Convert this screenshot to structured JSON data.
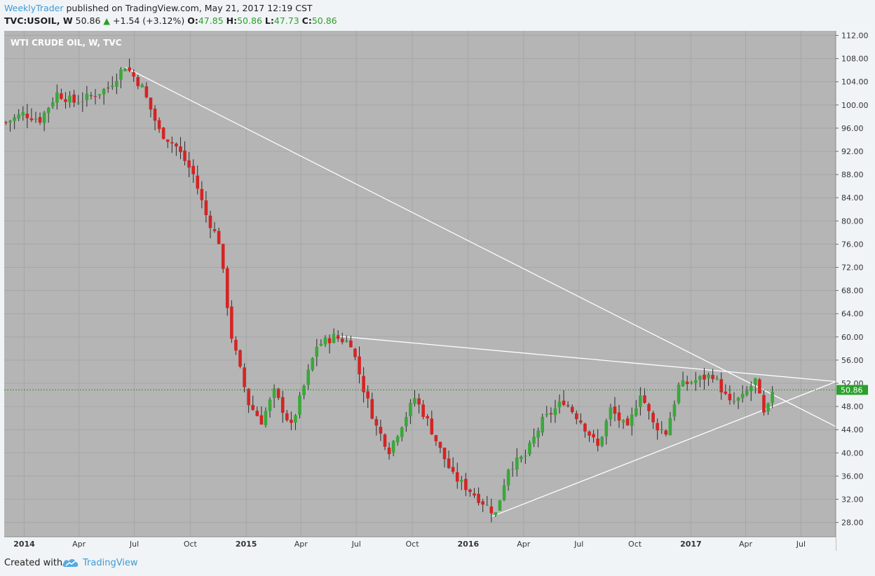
{
  "header": {
    "author": "WeeklyTrader",
    "published": "published on TradingView.com, May 21, 2017 12:19 CST",
    "symbol": "TVC:USOIL, W",
    "last": "50.86",
    "change": "+1.54 (+3.12%)",
    "o_label": "O:",
    "o_value": "47.85",
    "h_label": "H:",
    "h_value": "50.86",
    "l_label": "L:",
    "l_value": "47.73",
    "c_label": "C:",
    "c_value": "50.86"
  },
  "footer": {
    "created_with": "Created with",
    "brand": "TradingView",
    "logo_icon": "tradingview-cloud-icon"
  },
  "colors": {
    "up": "#3aa83a",
    "down": "#d42424",
    "background": "#b5b5b5",
    "price_label": "#2ba02b",
    "trendline": "#ffffff"
  },
  "chart_data": {
    "type": "candlestick",
    "title": "WTI CRUDE OIL, W, TVC",
    "ylim": [
      25,
      113
    ],
    "y_ticks": [
      "112.00",
      "108.00",
      "104.00",
      "100.00",
      "96.00",
      "92.00",
      "88.00",
      "84.00",
      "80.00",
      "76.00",
      "72.00",
      "68.00",
      "64.00",
      "60.00",
      "56.00",
      "52.00",
      "48.00",
      "44.00",
      "40.00",
      "36.00",
      "32.00",
      "28.00"
    ],
    "x_ticks": [
      {
        "label": "2014",
        "date": "2014-01-01"
      },
      {
        "label": "Apr",
        "date": "2014-04-01"
      },
      {
        "label": "Jul",
        "date": "2014-07-01"
      },
      {
        "label": "Oct",
        "date": "2014-10-01"
      },
      {
        "label": "2015",
        "date": "2015-01-01"
      },
      {
        "label": "Apr",
        "date": "2015-04-01"
      },
      {
        "label": "Jul",
        "date": "2015-07-01"
      },
      {
        "label": "Oct",
        "date": "2015-10-01"
      },
      {
        "label": "2016",
        "date": "2016-01-01"
      },
      {
        "label": "Apr",
        "date": "2016-04-01"
      },
      {
        "label": "Jul",
        "date": "2016-07-01"
      },
      {
        "label": "Oct",
        "date": "2016-10-01"
      },
      {
        "label": "2017",
        "date": "2017-01-01"
      },
      {
        "label": "Apr",
        "date": "2017-04-01"
      },
      {
        "label": "Jul",
        "date": "2017-07-01"
      }
    ],
    "current_price": "50.86",
    "close_series": [
      {
        "date": "2013-12-02",
        "close": 97.0
      },
      {
        "date": "2013-12-30",
        "close": 98.5
      },
      {
        "date": "2014-01-27",
        "close": 97.5
      },
      {
        "date": "2014-02-24",
        "close": 102.0
      },
      {
        "date": "2014-03-24",
        "close": 100.5
      },
      {
        "date": "2014-04-21",
        "close": 101.5
      },
      {
        "date": "2014-05-19",
        "close": 103.0
      },
      {
        "date": "2014-06-16",
        "close": 106.8
      },
      {
        "date": "2014-07-14",
        "close": 103.0
      },
      {
        "date": "2014-08-11",
        "close": 95.5
      },
      {
        "date": "2014-09-08",
        "close": 92.8
      },
      {
        "date": "2014-10-06",
        "close": 88.0
      },
      {
        "date": "2014-10-27",
        "close": 81.0
      },
      {
        "date": "2014-11-17",
        "close": 76.5
      },
      {
        "date": "2014-12-08",
        "close": 60.0
      },
      {
        "date": "2015-01-05",
        "close": 48.5
      },
      {
        "date": "2015-01-26",
        "close": 45.5
      },
      {
        "date": "2015-02-16",
        "close": 50.5
      },
      {
        "date": "2015-03-16",
        "close": 44.5
      },
      {
        "date": "2015-04-06",
        "close": 51.5
      },
      {
        "date": "2015-04-27",
        "close": 58.5
      },
      {
        "date": "2015-05-25",
        "close": 60.0
      },
      {
        "date": "2015-06-22",
        "close": 59.0
      },
      {
        "date": "2015-07-13",
        "close": 51.0
      },
      {
        "date": "2015-08-03",
        "close": 44.5
      },
      {
        "date": "2015-08-24",
        "close": 40.5
      },
      {
        "date": "2015-09-14",
        "close": 45.0
      },
      {
        "date": "2015-10-05",
        "close": 49.5
      },
      {
        "date": "2015-10-26",
        "close": 45.5
      },
      {
        "date": "2015-11-16",
        "close": 40.5
      },
      {
        "date": "2015-12-07",
        "close": 36.0
      },
      {
        "date": "2016-01-04",
        "close": 33.5
      },
      {
        "date": "2016-01-25",
        "close": 31.5
      },
      {
        "date": "2016-02-15",
        "close": 29.5
      },
      {
        "date": "2016-03-07",
        "close": 37.5
      },
      {
        "date": "2016-04-04",
        "close": 39.5
      },
      {
        "date": "2016-05-02",
        "close": 45.5
      },
      {
        "date": "2016-06-06",
        "close": 49.0
      },
      {
        "date": "2016-07-04",
        "close": 45.5
      },
      {
        "date": "2016-08-01",
        "close": 41.0
      },
      {
        "date": "2016-08-22",
        "close": 47.5
      },
      {
        "date": "2016-09-19",
        "close": 44.0
      },
      {
        "date": "2016-10-10",
        "close": 50.5
      },
      {
        "date": "2016-10-31",
        "close": 45.0
      },
      {
        "date": "2016-11-21",
        "close": 43.5
      },
      {
        "date": "2016-12-12",
        "close": 51.5
      },
      {
        "date": "2017-01-09",
        "close": 52.5
      },
      {
        "date": "2017-02-06",
        "close": 53.5
      },
      {
        "date": "2017-03-06",
        "close": 48.5
      },
      {
        "date": "2017-03-27",
        "close": 49.5
      },
      {
        "date": "2017-04-17",
        "close": 52.5
      },
      {
        "date": "2017-05-01",
        "close": 46.5
      },
      {
        "date": "2017-05-08",
        "close": 47.8
      },
      {
        "date": "2017-05-15",
        "close": 50.86
      }
    ],
    "trendlines": [
      {
        "name": "upper-long",
        "from": {
          "date": "2014-06-16",
          "value": 106.5
        },
        "to": {
          "date": "2017-08-28",
          "value": 44.5
        }
      },
      {
        "name": "upper-mid",
        "from": {
          "date": "2015-05-25",
          "value": 60.2
        },
        "to": {
          "date": "2017-08-28",
          "value": 52.3
        }
      },
      {
        "name": "lower",
        "from": {
          "date": "2016-02-08",
          "value": 29.0
        },
        "to": {
          "date": "2017-08-28",
          "value": 52.3
        }
      }
    ],
    "grid": true
  }
}
